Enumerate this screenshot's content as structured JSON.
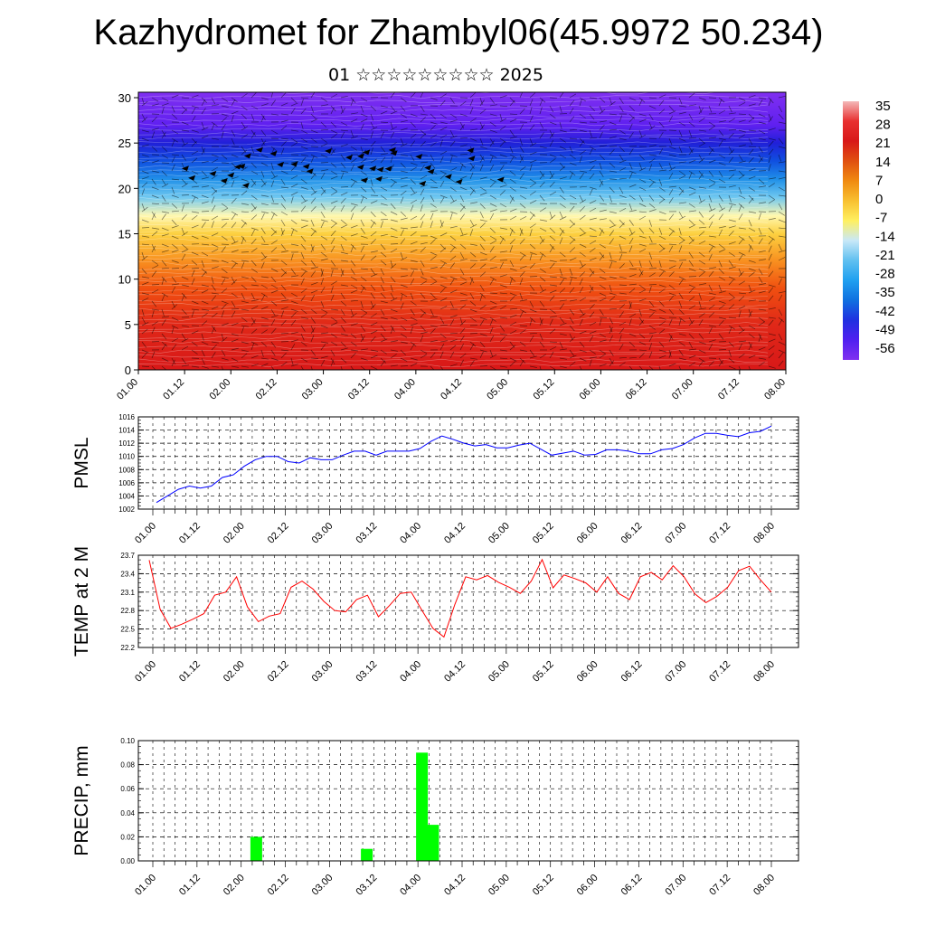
{
  "title": "Kazhydromet for Zhambyl06(45.9972 50.234)",
  "subtitle": "01 ☆☆☆☆☆☆☆☆☆ 2025",
  "colors": {
    "pmsl_line": "#0000ff",
    "temp_line": "#ff0000",
    "precip_bar": "#00ff00",
    "background": "#ffffff"
  },
  "chart_data": [
    {
      "type": "heatmap",
      "name_hint": "temperature-wind cross-section",
      "xlabel": "",
      "ylabel": "",
      "x_ticks": [
        "01.00",
        "01.12",
        "02.00",
        "02.12",
        "03.00",
        "03.12",
        "04.00",
        "04.12",
        "05.00",
        "05.12",
        "06.00",
        "06.12",
        "07.00",
        "07.12",
        "08.00"
      ],
      "y_ticks": [
        0,
        5,
        10,
        15,
        20,
        25,
        30
      ],
      "ylim": [
        0,
        30.6
      ],
      "colorbar_labels": [
        "35",
        "28",
        "21",
        "14",
        "7",
        "0",
        "-7",
        "-14",
        "-21",
        "-28",
        "-35",
        "-42",
        "-49",
        "-56"
      ],
      "colorbar_stops": [
        "#f4b8b8",
        "#e83030",
        "#d81818",
        "#e05010",
        "#f08a10",
        "#f8c030",
        "#fff060",
        "#c8e8f8",
        "#60c0f0",
        "#20a0f0",
        "#1070e0",
        "#2030e0",
        "#5020f0",
        "#8030f0"
      ],
      "vertical_temperature_profile": [
        {
          "level": 0,
          "color": "#d81818"
        },
        {
          "level": 5,
          "color": "#e02818"
        },
        {
          "level": 9,
          "color": "#f05010"
        },
        {
          "level": 12,
          "color": "#f89020"
        },
        {
          "level": 15,
          "color": "#fcd040"
        },
        {
          "level": 17,
          "color": "#fff8b0"
        },
        {
          "level": 19,
          "color": "#70c8f0"
        },
        {
          "level": 21,
          "color": "#2090e8"
        },
        {
          "level": 23,
          "color": "#1050e0"
        },
        {
          "level": 25,
          "color": "#2020d8"
        },
        {
          "level": 27,
          "color": "#6020f0"
        },
        {
          "level": 30.6,
          "color": "#8030f0"
        }
      ]
    },
    {
      "type": "line",
      "ylabel": "PMSL",
      "x_ticks": [
        "01.00",
        "01.12",
        "02.00",
        "02.12",
        "03.00",
        "03.12",
        "04.00",
        "04.12",
        "05.00",
        "05.12",
        "06.00",
        "06.12",
        "07.00",
        "07.12",
        "08.00"
      ],
      "y_ticks": [
        "1002",
        "1004",
        "1006",
        "1008",
        "1010",
        "1012",
        "1014",
        "1016"
      ],
      "ylim": [
        1002,
        1016
      ],
      "values": [
        1003.0,
        1004.0,
        1005.0,
        1005.5,
        1005.2,
        1005.5,
        1006.8,
        1007.2,
        1008.5,
        1009.5,
        1010.0,
        1010.0,
        1009.2,
        1009.0,
        1009.8,
        1009.5,
        1009.5,
        1010.2,
        1010.8,
        1010.8,
        1010.2,
        1010.8,
        1010.8,
        1010.8,
        1011.2,
        1012.3,
        1013.1,
        1012.6,
        1012.0,
        1011.6,
        1011.8,
        1011.3,
        1011.3,
        1011.7,
        1012.0,
        1011.1,
        1010.2,
        1010.5,
        1010.8,
        1010.2,
        1010.3,
        1011.0,
        1011.0,
        1010.8,
        1010.4,
        1010.4,
        1011.0,
        1011.2,
        1011.8,
        1012.8,
        1013.5,
        1013.5,
        1013.2,
        1013.0,
        1013.6,
        1013.8,
        1014.6
      ]
    },
    {
      "type": "line",
      "ylabel": "TEMP at 2 M",
      "x_ticks": [
        "01.00",
        "01.12",
        "02.00",
        "02.12",
        "03.00",
        "03.12",
        "04.00",
        "04.12",
        "05.00",
        "05.12",
        "06.00",
        "06.12",
        "07.00",
        "07.12",
        "08.00"
      ],
      "y_ticks": [
        "22.2",
        "22.5",
        "22.8",
        "23.1",
        "23.4",
        "23.7"
      ],
      "ylim": [
        22.2,
        23.7
      ],
      "values": [
        23.62,
        22.82,
        22.51,
        22.58,
        22.66,
        22.75,
        23.05,
        23.1,
        23.35,
        22.86,
        22.62,
        22.71,
        22.75,
        23.18,
        23.28,
        23.15,
        22.95,
        22.8,
        22.78,
        22.98,
        23.05,
        22.7,
        22.88,
        23.08,
        23.1,
        22.8,
        22.51,
        22.37,
        22.9,
        23.35,
        23.3,
        23.37,
        23.26,
        23.18,
        23.08,
        23.28,
        23.63,
        23.17,
        23.38,
        23.32,
        23.25,
        23.1,
        23.35,
        23.08,
        22.98,
        23.35,
        23.42,
        23.3,
        23.53,
        23.35,
        23.07,
        22.93,
        23.03,
        23.18,
        23.45,
        23.52,
        23.3,
        23.1
      ]
    },
    {
      "type": "bar",
      "ylabel": "PRECIP, mm",
      "x_ticks": [
        "01.00",
        "01.12",
        "02.00",
        "02.12",
        "03.00",
        "03.12",
        "04.00",
        "04.12",
        "05.00",
        "05.12",
        "06.00",
        "06.12",
        "07.00",
        "07.12",
        "08.00"
      ],
      "y_ticks": [
        "0.00",
        "0.02",
        "0.04",
        "0.06",
        "0.08",
        "0.10"
      ],
      "ylim": [
        0,
        0.1
      ],
      "bars": [
        {
          "x": "02.03",
          "value": 0.02
        },
        {
          "x": "03.09",
          "value": 0.01
        },
        {
          "x": "04.00",
          "value": 0.09
        },
        {
          "x": "04.03",
          "value": 0.03
        }
      ]
    }
  ]
}
